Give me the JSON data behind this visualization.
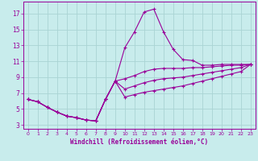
{
  "xlabel": "Windchill (Refroidissement éolien,°C)",
  "background_color": "#c8ecec",
  "grid_color": "#aad4d4",
  "line_color": "#990099",
  "x_ticks": [
    0,
    1,
    2,
    3,
    4,
    5,
    6,
    7,
    8,
    9,
    10,
    11,
    12,
    13,
    14,
    15,
    16,
    17,
    18,
    19,
    20,
    21,
    22,
    23
  ],
  "y_ticks": [
    3,
    5,
    7,
    9,
    11,
    13,
    15,
    17
  ],
  "ylim": [
    2.5,
    18.5
  ],
  "xlim": [
    -0.5,
    23.5
  ],
  "lines": [
    {
      "x": [
        0,
        1,
        2,
        3,
        4,
        5,
        6,
        7,
        8,
        9,
        10,
        11,
        12,
        13,
        14,
        15,
        16,
        17,
        18,
        19,
        20,
        21,
        22,
        23
      ],
      "y": [
        6.2,
        5.9,
        5.2,
        4.6,
        4.1,
        3.9,
        3.6,
        3.5,
        6.2,
        8.5,
        12.7,
        14.7,
        17.2,
        17.55,
        14.7,
        12.5,
        11.2,
        11.1,
        10.5,
        10.5,
        10.6,
        10.6,
        10.6,
        10.6
      ]
    },
    {
      "x": [
        0,
        1,
        2,
        3,
        4,
        5,
        6,
        7,
        8,
        9,
        10,
        11,
        12,
        13,
        14,
        15,
        16,
        17,
        18,
        19,
        20,
        21,
        22,
        23
      ],
      "y": [
        6.2,
        5.9,
        5.2,
        4.6,
        4.1,
        3.9,
        3.6,
        3.5,
        6.2,
        8.5,
        8.8,
        9.2,
        9.7,
        10.0,
        10.1,
        10.1,
        10.1,
        10.2,
        10.2,
        10.3,
        10.4,
        10.5,
        10.5,
        10.6
      ]
    },
    {
      "x": [
        0,
        1,
        2,
        3,
        4,
        5,
        6,
        7,
        8,
        9,
        10,
        11,
        12,
        13,
        14,
        15,
        16,
        17,
        18,
        19,
        20,
        21,
        22,
        23
      ],
      "y": [
        6.2,
        5.9,
        5.2,
        4.6,
        4.1,
        3.9,
        3.6,
        3.5,
        6.2,
        8.5,
        7.5,
        7.9,
        8.3,
        8.6,
        8.8,
        8.9,
        9.0,
        9.2,
        9.4,
        9.6,
        9.8,
        10.0,
        10.2,
        10.6
      ]
    },
    {
      "x": [
        0,
        1,
        2,
        3,
        4,
        5,
        6,
        7,
        8,
        9,
        10,
        11,
        12,
        13,
        14,
        15,
        16,
        17,
        18,
        19,
        20,
        21,
        22,
        23
      ],
      "y": [
        6.2,
        5.9,
        5.2,
        4.6,
        4.1,
        3.9,
        3.6,
        3.5,
        6.2,
        8.5,
        6.5,
        6.8,
        7.1,
        7.3,
        7.5,
        7.7,
        7.9,
        8.2,
        8.5,
        8.8,
        9.1,
        9.4,
        9.7,
        10.6
      ]
    }
  ]
}
